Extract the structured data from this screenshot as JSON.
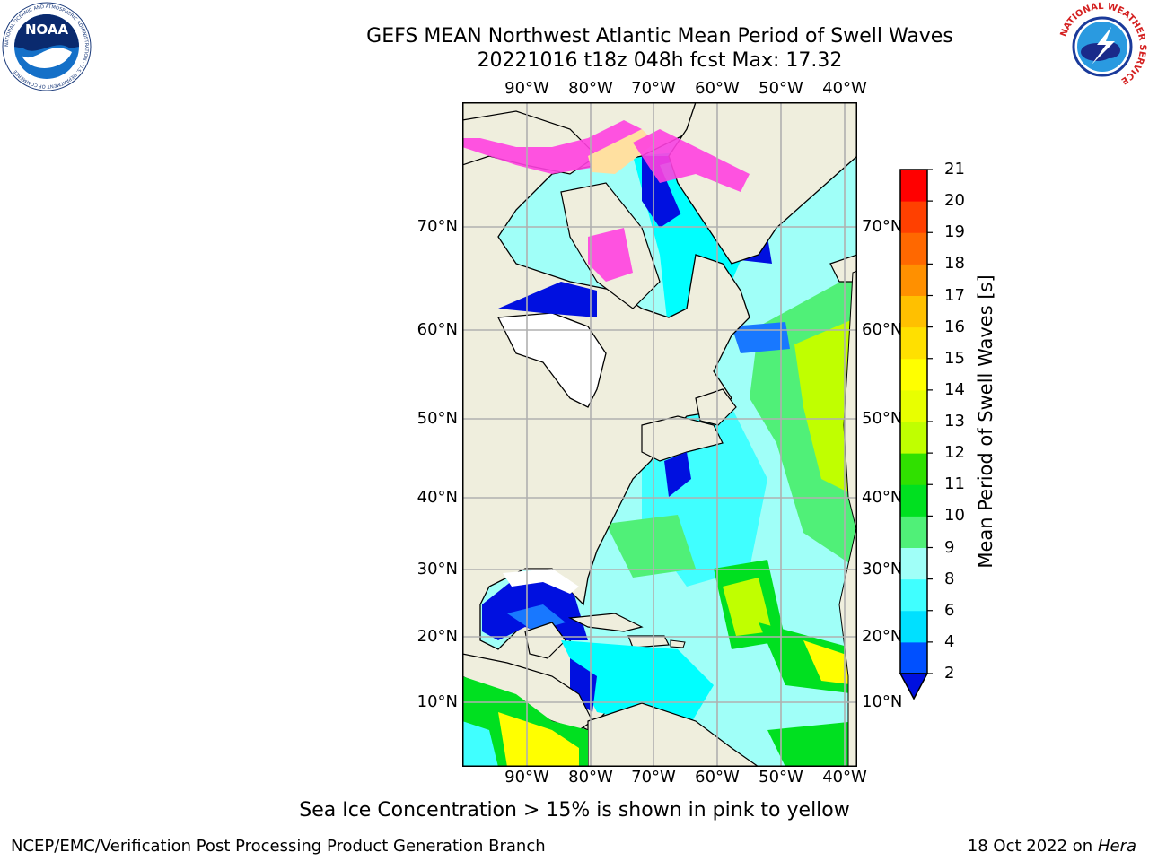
{
  "title": {
    "line1": "GEFS MEAN Northwest Atlantic Mean Period of Swell Waves",
    "line2": "20221016 t18z 048h fcst   Max: 17.32"
  },
  "map": {
    "lon_labels": [
      "90°W",
      "80°W",
      "70°W",
      "60°W",
      "50°W",
      "40°W"
    ],
    "lat_labels": [
      "70°N",
      "60°N",
      "50°N",
      "40°N",
      "30°N",
      "20°N",
      "10°N"
    ],
    "colors": {
      "land": "#efeedd",
      "grid": "#b0b0b0",
      "deep_blue": "#0010e0",
      "blue": "#1878ff",
      "cyan": "#00ffff",
      "light_cyan": "#a0fff8",
      "green_light": "#50f078",
      "green": "#00e020",
      "yellow_green": "#c0ff00",
      "yellow": "#ffff00",
      "ice_pink": "#ff40e0"
    }
  },
  "colorbar": {
    "title": "Mean Period of Swell Waves [s]",
    "ticks": [
      "2",
      "4",
      "6",
      "8",
      "9",
      "10",
      "11",
      "12",
      "13",
      "14",
      "15",
      "16",
      "17",
      "18",
      "19",
      "20",
      "21"
    ],
    "colors": [
      "#0050ff",
      "#00e0ff",
      "#40ffff",
      "#a0fff8",
      "#50f078",
      "#00e020",
      "#30e000",
      "#c0ff00",
      "#e8ff00",
      "#ffff00",
      "#ffe000",
      "#ffc000",
      "#ff9000",
      "#ff6800",
      "#ff4000",
      "#ff0000"
    ],
    "under_color": "#0010e0"
  },
  "footnote": "Sea Ice Concentration > 15% is shown in pink to yellow",
  "footer": {
    "left": "NCEP/EMC/Verification Post Processing Product Generation Branch",
    "right_prefix": "18 Oct 2022 on ",
    "right_host": "Hera"
  },
  "logos": {
    "noaa_text": "NOAA",
    "noaa_ring": "NATIONAL OCEANIC AND ATMOSPHERIC ADMINISTRATION · U.S. DEPARTMENT OF COMMERCE",
    "nws_ring": "NATIONAL WEATHER SERVICE"
  }
}
